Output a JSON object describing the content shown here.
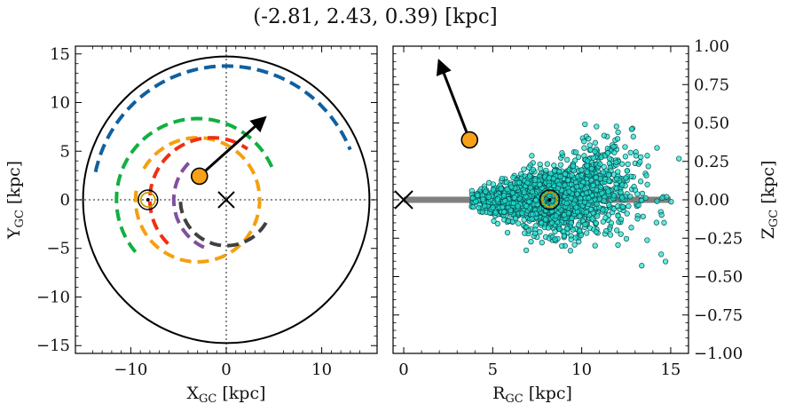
{
  "title": "(-2.81, 2.43, 0.39) [kpc]",
  "colors": {
    "blue": "#1060a0",
    "green": "#10b040",
    "orange": "#f5a010",
    "red": "#f03010",
    "purple": "#8050a0",
    "gray": "#404040",
    "teal": "#20e0d0",
    "marker": "#f8a018"
  },
  "chart_data": [
    {
      "type": "line",
      "xlabel": "X",
      "xlabel_sub": "GC",
      "xlabel_unit": "[kpc]",
      "ylabel": "Y",
      "ylabel_sub": "GC",
      "ylabel_unit": "[kpc]",
      "xlim": [
        -15.8,
        15.8
      ],
      "ylim": [
        -15.8,
        15.8
      ],
      "xticks": [
        -10,
        0,
        10
      ],
      "xtick_labels": [
        "−10",
        "0",
        "10"
      ],
      "yticks": [
        -15,
        -10,
        -5,
        0,
        5,
        10,
        15
      ],
      "ytick_labels": [
        "−15",
        "−10",
        "−5",
        "0",
        "5",
        "10",
        "15"
      ],
      "boundary_circle_radius": 15,
      "arms": [
        {
          "color": "blue",
          "center": [
            0,
            0
          ],
          "radius": 14.0,
          "start_deg": 168,
          "end_deg": 22
        },
        {
          "color": "green",
          "center": [
            -3,
            0
          ],
          "radius": 8.5,
          "start_deg": 220,
          "end_deg": 20
        },
        {
          "color": "orange",
          "center": [
            -3,
            0
          ],
          "radius": 6.5,
          "start_deg": 150,
          "end_deg": 170
        },
        {
          "color": "red",
          "center": [
            -1.5,
            0
          ],
          "radius": 6.5,
          "start_deg": 225,
          "end_deg": 55
        },
        {
          "color": "purple",
          "center": [
            0,
            0
          ],
          "radius": 5.5,
          "start_deg": 245,
          "end_deg": 130
        },
        {
          "color": "gray",
          "center": [
            0,
            0
          ],
          "radius": 4.8,
          "start_deg": 330,
          "end_deg": 180
        }
      ],
      "galactic_center": [
        0,
        0
      ],
      "sun": [
        -8.2,
        0
      ],
      "star": [
        -2.81,
        2.43
      ],
      "velocity_arrow_end": [
        4.0,
        8.4
      ]
    },
    {
      "type": "scatter",
      "xlabel": "R",
      "xlabel_sub": "GC",
      "xlabel_unit": "[kpc]",
      "ylabel": "Z",
      "ylabel_sub": "GC",
      "ylabel_unit": "[kpc]",
      "ylabel_side": "right",
      "xlim": [
        -0.6,
        16
      ],
      "ylim": [
        -1.0,
        1.0
      ],
      "xticks": [
        0,
        5,
        10,
        15
      ],
      "xtick_labels": [
        "0",
        "5",
        "10",
        "15"
      ],
      "yticks": [
        -1.0,
        -0.75,
        -0.5,
        -0.25,
        0.0,
        0.25,
        0.5,
        0.75,
        1.0
      ],
      "ytick_labels": [
        "−1.00",
        "−0.75",
        "−0.50",
        "−0.25",
        "0.00",
        "0.25",
        "0.50",
        "0.75",
        "1.00"
      ],
      "disk_line": {
        "x": [
          0,
          15
        ],
        "y": 0
      },
      "galactic_center": [
        0,
        0
      ],
      "sun": [
        8.2,
        0
      ],
      "star": [
        3.7,
        0.39
      ],
      "velocity_arrow_end": [
        2.0,
        0.9
      ]
    }
  ]
}
